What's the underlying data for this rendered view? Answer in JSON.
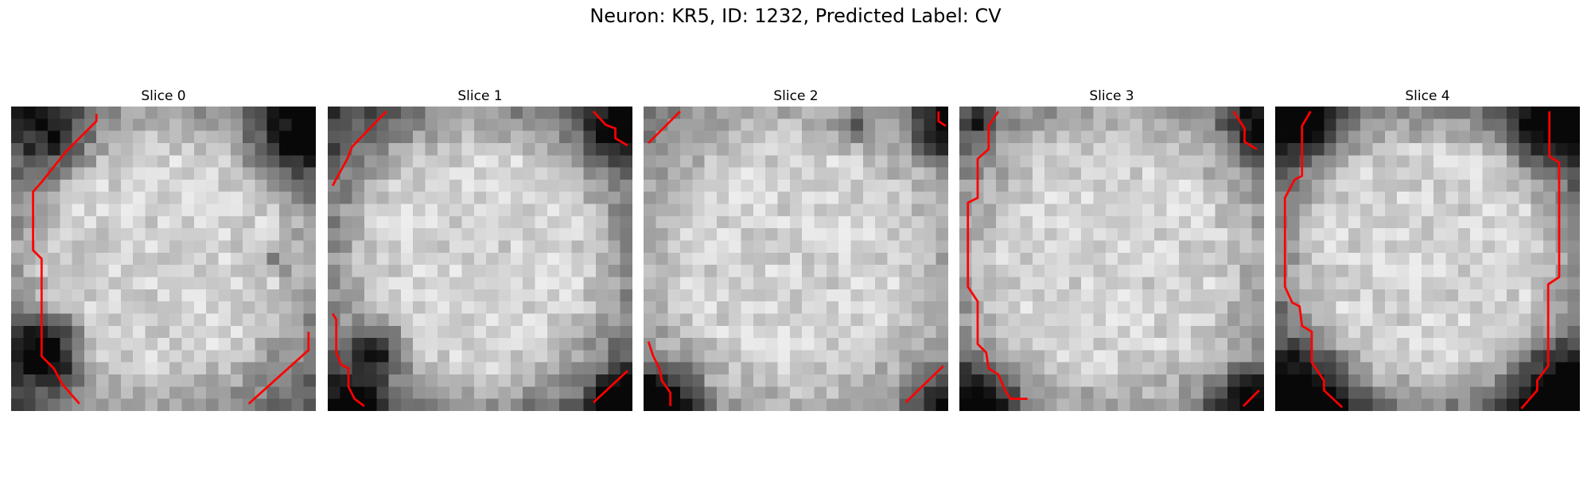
{
  "figure": {
    "title": "Neuron: KR5, ID: 1232, Predicted Label: CV"
  },
  "panels": [
    {
      "title": "Slice 0"
    },
    {
      "title": "Slice 1"
    },
    {
      "title": "Slice 2"
    },
    {
      "title": "Slice 3"
    },
    {
      "title": "Slice 4"
    }
  ],
  "colors": {
    "contour": "#ff0000",
    "colormap": "grayscale"
  }
}
